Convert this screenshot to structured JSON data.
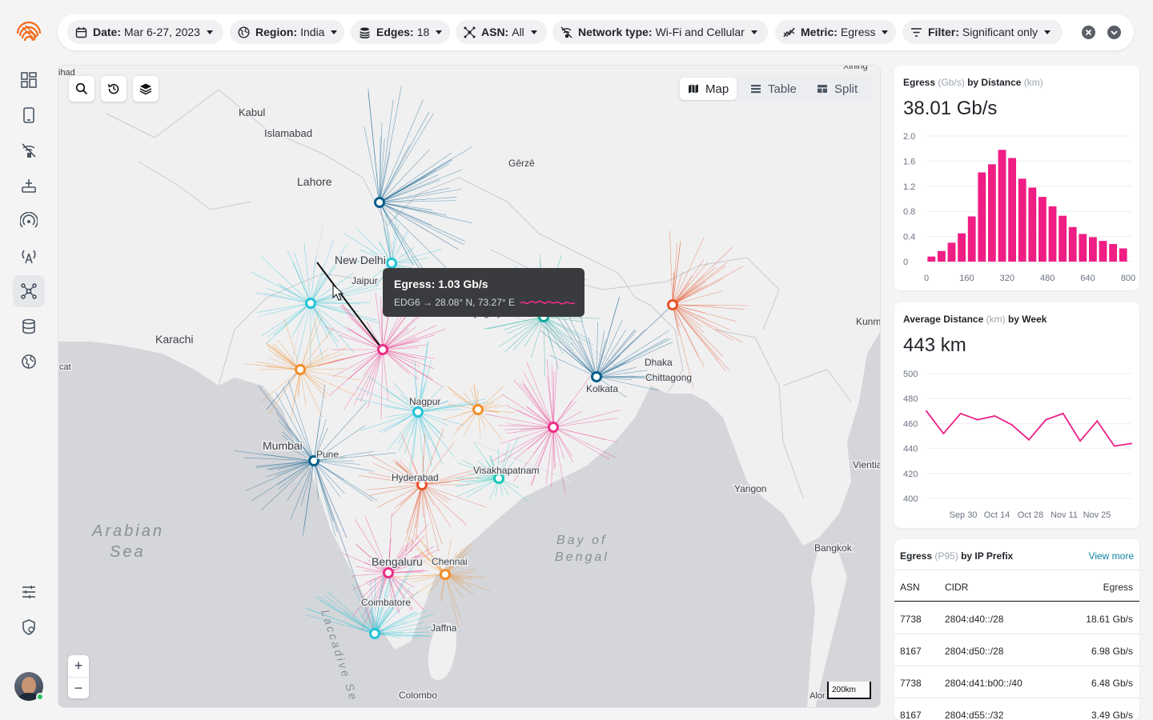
{
  "filters": [
    {
      "key": "date",
      "label": "Date:",
      "value": "Mar 6-27, 2023",
      "icon": "calendar-icon"
    },
    {
      "key": "region",
      "label": "Region:",
      "value": "India",
      "icon": "globe-icon"
    },
    {
      "key": "edges",
      "label": "Edges:",
      "value": "18",
      "icon": "database-icon"
    },
    {
      "key": "asn",
      "label": "ASN:",
      "value": "All",
      "icon": "network-icon"
    },
    {
      "key": "network_type",
      "label": "Network type:",
      "value": "Wi-Fi and Cellular",
      "icon": "wifi-signal-icon"
    },
    {
      "key": "metric",
      "label": "Metric:",
      "value": "Egress",
      "icon": "chart-line-icon"
    },
    {
      "key": "filter",
      "label": "Filter:",
      "value": "Significant only",
      "icon": "filter-lines-icon"
    }
  ],
  "view_toggle": {
    "map": "Map",
    "table": "Table",
    "split": "Split"
  },
  "map": {
    "cities": [
      {
        "name": "Kabul"
      },
      {
        "name": "Islamabad"
      },
      {
        "name": "Lahore"
      },
      {
        "name": "Gêrzê"
      },
      {
        "name": "New Delhi"
      },
      {
        "name": "Jaipur"
      },
      {
        "name": "Prayagraj"
      },
      {
        "name": "Karachi"
      },
      {
        "name": "Dhaka"
      },
      {
        "name": "Chittagong"
      },
      {
        "name": "Kolkata"
      },
      {
        "name": "Nagpur"
      },
      {
        "name": "Mumbai"
      },
      {
        "name": "Pune"
      },
      {
        "name": "Hyderabad"
      },
      {
        "name": "Visakhapatnam"
      },
      {
        "name": "Yangon"
      },
      {
        "name": "Bengaluru"
      },
      {
        "name": "Chennai"
      },
      {
        "name": "Coimbatore"
      },
      {
        "name": "Jaffna"
      },
      {
        "name": "Colombo"
      },
      {
        "name": "Bangkok"
      },
      {
        "name": "Kunm"
      },
      {
        "name": "Vientia"
      },
      {
        "name": "ihad"
      },
      {
        "name": "cat"
      },
      {
        "name": "Xining"
      },
      {
        "name": "Alor"
      }
    ],
    "seas": [
      "Arabian",
      "Sea",
      "Bay of",
      "Bengal",
      "Laccadive Se"
    ],
    "scale_label": "200km",
    "zoom_in": "+",
    "zoom_out": "−"
  },
  "tooltip": {
    "title": "Egress: 1.03 Gb/s",
    "subtitle": "EDG6 → 28.08° N, 73.27° E",
    "accent": "#ec2f86"
  },
  "chart_data": [
    {
      "type": "bar",
      "title": "Egress",
      "title_unit": "(Gb/s)",
      "title_mid": "by Distance",
      "title_unit2": "(km)",
      "headline": "38.01 Gb/s",
      "color": "#f01d84",
      "x": [
        20,
        60,
        100,
        140,
        180,
        220,
        260,
        300,
        340,
        380,
        420,
        460,
        500,
        540,
        580,
        620,
        660,
        700,
        740,
        780
      ],
      "values": [
        0.08,
        0.17,
        0.3,
        0.45,
        0.72,
        1.42,
        1.55,
        1.78,
        1.65,
        1.32,
        1.18,
        1.03,
        0.88,
        0.73,
        0.55,
        0.44,
        0.39,
        0.33,
        0.28,
        0.21
      ],
      "xticks": [
        "0",
        "160",
        "320",
        "480",
        "640",
        "800"
      ],
      "yticks": [
        "0",
        "0.4",
        "0.8",
        "1.2",
        "1.6",
        "2.0"
      ],
      "xlim": [
        0,
        800
      ],
      "ylim": [
        0,
        2.0
      ]
    },
    {
      "type": "line",
      "title": "Average Distance",
      "title_unit": "(km)",
      "title_mid": "by Week",
      "headline": "443 km",
      "color": "#ec1f86",
      "values": [
        470,
        452,
        468,
        463,
        466,
        459,
        447,
        463,
        468,
        446,
        462,
        442,
        444
      ],
      "xticks": [
        "Sep 30",
        "Oct 14",
        "Oct 28",
        "Nov 11",
        "Nov 25"
      ],
      "yticks": [
        "400",
        "420",
        "440",
        "460",
        "480",
        "500"
      ],
      "ylim": [
        400,
        500
      ]
    }
  ],
  "ip_table": {
    "title": "Egress",
    "title_unit": "(P95)",
    "title_rest": "by IP Prefix",
    "view_more": "View more",
    "columns": [
      "ASN",
      "CIDR",
      "Egress"
    ],
    "rows": [
      {
        "asn": "7738",
        "cidr": "2804:d40::/28",
        "egress": "18.61 Gb/s"
      },
      {
        "asn": "8167",
        "cidr": "2804:d50::/28",
        "egress": "6.98 Gb/s"
      },
      {
        "asn": "7738",
        "cidr": "2804:d41:b00::/40",
        "egress": "6.48 Gb/s"
      },
      {
        "asn": "8167",
        "cidr": "2804:d55::/32",
        "egress": "3.49 Gb/s"
      }
    ]
  },
  "colors": {
    "brand": "#f26b1d",
    "teal": "#22c3d6",
    "navy": "#0a5e8c",
    "orange": "#f28c28",
    "red": "#e8532a",
    "pink": "#ec2f86"
  }
}
